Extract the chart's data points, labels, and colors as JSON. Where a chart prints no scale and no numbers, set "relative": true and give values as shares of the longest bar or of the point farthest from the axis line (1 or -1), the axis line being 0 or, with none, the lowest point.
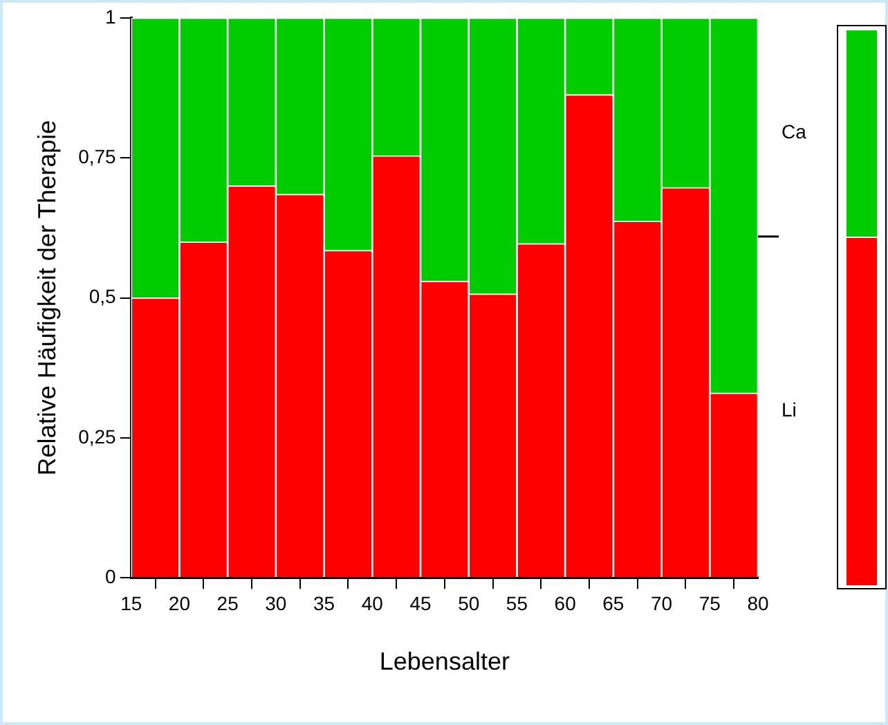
{
  "chart_data": [
    {
      "type": "bar",
      "stacked": true,
      "xlabel": "Lebensalter",
      "ylabel": "Relative Häufigkeit der Therapie",
      "x": [
        17.5,
        22.5,
        27.5,
        32.5,
        37.5,
        42.5,
        47.5,
        52.5,
        57.5,
        62.5,
        67.5,
        72.5,
        77.5
      ],
      "series": [
        {
          "color": "#ff0000",
          "values": [
            0.5,
            0.6,
            0.7,
            0.685,
            0.585,
            0.754,
            0.53,
            0.507,
            0.597,
            0.863,
            0.637,
            0.697,
            0.33
          ]
        },
        {
          "color": "#00cc00",
          "values": [
            0.5,
            0.4,
            0.3,
            0.315,
            0.415,
            0.246,
            0.47,
            0.493,
            0.403,
            0.137,
            0.363,
            0.303,
            0.67
          ]
        }
      ],
      "xlim": [
        15,
        80
      ],
      "xticks": [
        15,
        20,
        25,
        30,
        35,
        40,
        45,
        50,
        55,
        60,
        65,
        70,
        75,
        80
      ],
      "ylim": [
        0,
        1
      ],
      "yticks": [
        0,
        {
          "value": 0.25,
          "label": "0,25"
        },
        {
          "value": 0.5,
          "label": "0,5"
        },
        {
          "value": 0.75,
          "label": "0,75"
        },
        1
      ]
    },
    {
      "type": "bar",
      "stacked": true,
      "relative": true,
      "categories": [
        null
      ],
      "series": [
        {
          "name": "Li",
          "color": "#ff0000",
          "values": [
            0.627
          ]
        },
        {
          "name": "Ca",
          "color": "#00cc00",
          "values": [
            0.373
          ]
        }
      ]
    }
  ]
}
